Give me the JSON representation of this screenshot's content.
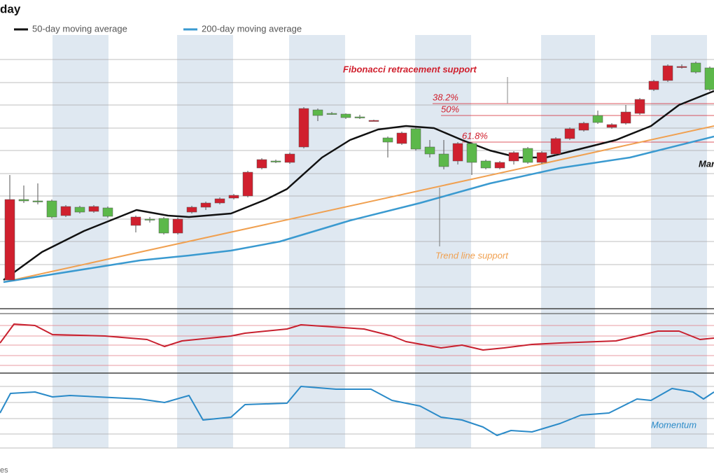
{
  "chart_data": {
    "type": "candlestick",
    "title": "day",
    "xlim": [
      -0.7,
      50.3
    ],
    "ylim": [
      0,
      390
    ],
    "gridlines": [
      30,
      62,
      95,
      127,
      160,
      192,
      225,
      257,
      290,
      322,
      355
    ],
    "candles": {
      "up_color": "#d0202e",
      "down_color": "#5cb84a",
      "x": [
        0,
        1,
        2,
        3,
        4,
        5,
        6,
        7,
        9,
        10,
        11,
        12,
        13,
        14,
        15,
        16,
        17,
        18,
        19,
        20,
        21,
        22,
        23,
        24,
        25,
        26,
        27,
        28,
        29,
        30,
        31,
        32,
        33,
        34,
        35,
        36,
        37,
        38,
        39,
        40,
        41,
        42,
        43,
        44,
        45,
        46,
        47,
        48,
        49,
        50
      ],
      "open": [
        40,
        155,
        153,
        153,
        132,
        144,
        138,
        143,
        118,
        127,
        128,
        107,
        137,
        144,
        150,
        157,
        160,
        200,
        210,
        208,
        230,
        283,
        278,
        277,
        273,
        268,
        243,
        235,
        256,
        230,
        220,
        210,
        235,
        210,
        200,
        210,
        228,
        208,
        220,
        242,
        254,
        275,
        258,
        264,
        278,
        312,
        325,
        345,
        350,
        343
      ],
      "high": [
        190,
        175,
        178,
        155,
        147,
        146,
        147,
        145,
        132,
        130,
        130,
        129,
        146,
        152,
        158,
        163,
        196,
        214,
        212,
        222,
        287,
        285,
        280,
        278,
        276,
        269,
        245,
        252,
        258,
        240,
        240,
        237,
        237,
        212,
        210,
        224,
        230,
        224,
        244,
        258,
        266,
        282,
        264,
        290,
        300,
        326,
        348,
        348,
        352,
        345
      ],
      "low": [
        40,
        150,
        148,
        128,
        130,
        135,
        136,
        129,
        108,
        122,
        105,
        105,
        135,
        140,
        148,
        155,
        158,
        198,
        207,
        206,
        228,
        267,
        276,
        270,
        270,
        267,
        215,
        233,
        225,
        215,
        198,
        205,
        190,
        198,
        198,
        205,
        206,
        206,
        218,
        240,
        252,
        263,
        256,
        262,
        276,
        310,
        323,
        342,
        335,
        310
      ],
      "close": [
        155,
        153,
        152,
        130,
        145,
        137,
        145,
        131,
        130,
        126,
        107,
        127,
        144,
        150,
        156,
        161,
        194,
        212,
        209,
        220,
        285,
        275,
        277,
        272,
        272,
        268,
        237,
        250,
        227,
        220,
        202,
        235,
        208,
        200,
        208,
        222,
        208,
        222,
        242,
        256,
        264,
        265,
        262,
        280,
        298,
        324,
        346,
        345,
        337,
        312
      ]
    },
    "series": [
      {
        "name": "50-day moving average",
        "color": "#111111",
        "x": [
          -0.45,
          2.3,
          5.3,
          9.05,
          11.3,
          12.8,
          15.8,
          18.3,
          19.8,
          22.3,
          24.3,
          26.3,
          28.3,
          30.3,
          32.3,
          34.3,
          36.3,
          38.3,
          40.3,
          43.3,
          45.8,
          47.8,
          50.3
        ],
        "values": [
          40,
          80,
          110,
          140,
          132,
          130,
          135,
          155,
          170,
          215,
          240,
          255,
          260,
          257,
          240,
          225,
          215,
          215,
          225,
          240,
          260,
          290,
          310
        ]
      },
      {
        "name": "200-day moving average",
        "color": "#3a9ad0",
        "x": [
          -0.45,
          9.3,
          12.8,
          15.8,
          19.3,
          21.8,
          24.3,
          29.3,
          34.3,
          39.3,
          44.3,
          50.3
        ],
        "values": [
          37,
          68,
          75,
          82,
          95,
          110,
          125,
          150,
          178,
          200,
          215,
          245
        ]
      }
    ],
    "trend_line": {
      "label": "Trend line support",
      "color": "#f0a050",
      "x": [
        -0.45,
        50.3
      ],
      "values": [
        37,
        260
      ]
    },
    "fibonacci": {
      "label": "Fibonacci retracement support",
      "color": "#d0202e",
      "levels": [
        {
          "label": "38.2%",
          "value": 292
        },
        {
          "label": "50%",
          "value": 275
        },
        {
          "label": "61.8%",
          "value": 237
        }
      ]
    },
    "annotations": [
      "Mar",
      "es"
    ],
    "rsi": {
      "color": "#c8202e",
      "ylim": [
        0,
        85
      ],
      "gridlines": [
        8,
        22,
        37,
        50,
        65
      ],
      "x": [
        -0.7,
        0.3,
        1.8,
        3.05,
        6.8,
        9.8,
        11.05,
        12.3,
        15.8,
        16.8,
        19.8,
        20.8,
        25.3,
        27.3,
        28.3,
        30.8,
        32.3,
        33.8,
        35.3,
        37.3,
        39.3,
        43.3,
        46.3,
        47.8,
        49.3,
        50.3
      ],
      "values": [
        40,
        67,
        65,
        52,
        50,
        45,
        35,
        43,
        50,
        54,
        60,
        66,
        60,
        50,
        42,
        33,
        37,
        30,
        33,
        38,
        40,
        43,
        57,
        57,
        45,
        47
      ]
    },
    "momentum": {
      "label": "Momentum",
      "color": "#2a8ac8",
      "ylim": [
        0,
        105
      ],
      "gridlines": [
        20,
        42,
        65,
        88
      ],
      "x": [
        -0.7,
        0.05,
        1.8,
        3.05,
        4.3,
        9.3,
        11.05,
        12.8,
        13.8,
        15.8,
        16.8,
        19.8,
        20.8,
        23.3,
        25.8,
        27.3,
        29.3,
        30.8,
        32.3,
        33.8,
        34.8,
        35.8,
        37.3,
        39.3,
        40.8,
        42.8,
        44.8,
        45.8,
        47.3,
        48.8,
        49.55,
        50.3
      ],
      "values": [
        50,
        78,
        80,
        73,
        75,
        70,
        65,
        75,
        40,
        44,
        62,
        64,
        88,
        84,
        84,
        68,
        60,
        44,
        40,
        30,
        18,
        25,
        23,
        35,
        47,
        50,
        70,
        68,
        85,
        80,
        70,
        80
      ]
    }
  }
}
